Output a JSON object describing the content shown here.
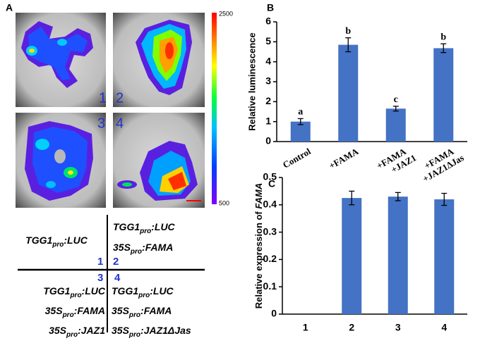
{
  "panel_labels": [
    "A",
    "B",
    "C"
  ],
  "panel_a": {
    "tile_numbers": [
      "1",
      "2",
      "3",
      "4"
    ],
    "colorbar": {
      "max": "2500",
      "min": "500"
    },
    "table": {
      "top_left": [
        {
          "name": "TGG1",
          "sub": "pro",
          "suffix": ":LUC"
        }
      ],
      "top_right": [
        {
          "name": "TGG1",
          "sub": "pro",
          "suffix": ":LUC"
        },
        {
          "name": "35S",
          "sub": "pro",
          "suffix": ":FAMA"
        }
      ],
      "bottom_left": [
        {
          "name": "TGG1",
          "sub": "pro",
          "suffix": ":LUC"
        },
        {
          "name": "35S",
          "sub": "pro",
          "suffix": ":FAMA"
        },
        {
          "name": "35S",
          "sub": "pro",
          "suffix": ":JAZ1"
        }
      ],
      "bottom_right": [
        {
          "name": "TGG1",
          "sub": "pro",
          "suffix": ":LUC"
        },
        {
          "name": "35S",
          "sub": "pro",
          "suffix": ":FAMA"
        },
        {
          "name": "35S",
          "sub": "pro",
          "suffix": ":JAZ1ΔJas"
        }
      ],
      "numbers": [
        "1",
        "2",
        "3",
        "4"
      ]
    }
  },
  "chart_data": [
    {
      "type": "bar",
      "y_label": "Relative luminescence",
      "categories": [
        "Control",
        "+FAMA",
        "+FAMA +JAZ1",
        "+FAMA +JAZ1ΔJas"
      ],
      "values": [
        1.0,
        4.85,
        1.65,
        4.68
      ],
      "errors": [
        0.15,
        0.35,
        0.12,
        0.22
      ],
      "annotations": [
        "a",
        "b",
        "c",
        "b"
      ],
      "color": "#4472c4",
      "ylim": [
        0,
        6
      ],
      "yticks": [
        0,
        1,
        2,
        3,
        4,
        5,
        6
      ]
    },
    {
      "type": "bar",
      "y_label": {
        "text": "Relative expression of ",
        "emphasis": "FAMA"
      },
      "categories": [
        "1",
        "2",
        "3",
        "4"
      ],
      "values": [
        0,
        0.425,
        0.43,
        0.42
      ],
      "errors": [
        0,
        0.025,
        0.015,
        0.022
      ],
      "color": "#4472c4",
      "ylim": [
        0,
        0.5
      ],
      "yticks": [
        0,
        0.1,
        0.2,
        0.3,
        0.4,
        0.5
      ]
    }
  ]
}
